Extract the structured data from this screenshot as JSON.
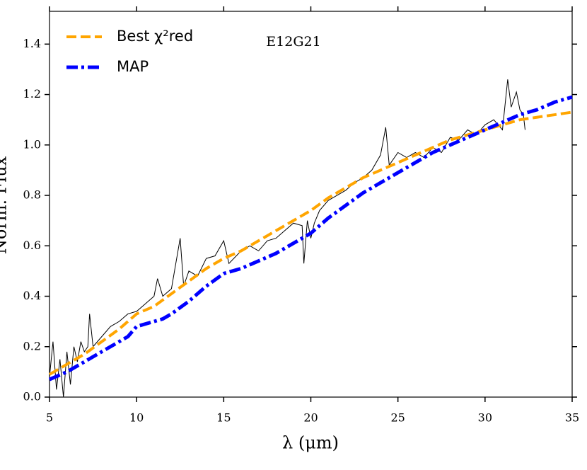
{
  "chart_data": {
    "type": "line",
    "xlabel": "λ (μm)",
    "ylabel": "Norm. Flux",
    "annotation": "E12G21",
    "xlim": [
      5,
      35
    ],
    "xticks": [
      5,
      10,
      15,
      20,
      25,
      30,
      35
    ],
    "ylim": [
      0,
      1.53
    ],
    "yticks": [
      {
        "value": 0,
        "label": "0.0"
      },
      {
        "value": 0.2,
        "label": "0.2"
      },
      {
        "value": 0.4,
        "label": "0.4"
      },
      {
        "value": 0.6,
        "label": "0.6"
      },
      {
        "value": 0.8,
        "label": "0.8"
      },
      {
        "value": 1.0,
        "label": "1.0"
      },
      {
        "value": 1.2,
        "label": "1.2"
      },
      {
        "value": 1.4,
        "label": "1.4"
      }
    ],
    "legend": "upper left",
    "series": [
      {
        "color": "#000000",
        "style": "solid",
        "width": 1,
        "x": [
          5,
          5.2,
          5.4,
          5.6,
          5.8,
          6.0,
          6.2,
          6.4,
          6.6,
          6.8,
          7.0,
          7.2,
          7.3,
          7.5,
          8,
          8.5,
          9,
          9.5,
          10,
          10.5,
          11,
          11.2,
          11.5,
          12,
          12.3,
          12.5,
          12.7,
          13,
          13.5,
          14,
          14.5,
          15,
          15.3,
          16,
          16.5,
          17,
          17.5,
          18,
          18.5,
          19,
          19.5,
          19.6,
          19.8,
          20,
          20.2,
          20.5,
          21,
          21.5,
          22,
          22.5,
          23,
          23.5,
          24,
          24.3,
          24.5,
          25,
          25.5,
          26,
          26.5,
          27,
          27.5,
          28,
          28.5,
          29,
          29.5,
          30,
          30.5,
          31,
          31.3,
          31.5,
          31.8,
          32,
          32.2,
          32.3
        ],
        "values": [
          0.08,
          0.22,
          0.03,
          0.15,
          0.0,
          0.18,
          0.05,
          0.2,
          0.14,
          0.22,
          0.18,
          0.2,
          0.33,
          0.2,
          0.24,
          0.28,
          0.3,
          0.33,
          0.34,
          0.37,
          0.4,
          0.47,
          0.4,
          0.43,
          0.55,
          0.63,
          0.44,
          0.5,
          0.48,
          0.55,
          0.56,
          0.62,
          0.53,
          0.58,
          0.6,
          0.58,
          0.62,
          0.63,
          0.66,
          0.69,
          0.68,
          0.53,
          0.7,
          0.63,
          0.69,
          0.74,
          0.78,
          0.8,
          0.82,
          0.85,
          0.87,
          0.9,
          0.96,
          1.07,
          0.92,
          0.97,
          0.95,
          0.97,
          0.95,
          0.99,
          0.97,
          1.03,
          1.02,
          1.06,
          1.04,
          1.08,
          1.1,
          1.06,
          1.26,
          1.15,
          1.21,
          1.14,
          1.12,
          1.06
        ]
      },
      {
        "name": "Best χ²red",
        "color": "#ffa500",
        "style": "dashed",
        "width": 4,
        "x": [
          5,
          7,
          9,
          10,
          11,
          12,
          13,
          14,
          15,
          16,
          17,
          18,
          19,
          20,
          21,
          22,
          23,
          24,
          25,
          26,
          27,
          28,
          29,
          30,
          31,
          32,
          33,
          34,
          35
        ],
        "values": [
          0.09,
          0.17,
          0.27,
          0.33,
          0.36,
          0.41,
          0.46,
          0.51,
          0.55,
          0.58,
          0.62,
          0.66,
          0.7,
          0.74,
          0.79,
          0.83,
          0.87,
          0.9,
          0.93,
          0.96,
          0.99,
          1.02,
          1.04,
          1.06,
          1.08,
          1.1,
          1.11,
          1.12,
          1.13
        ]
      },
      {
        "name": "MAP",
        "color": "#0000ff",
        "style": "dashdot",
        "width": 5,
        "x": [
          5,
          6,
          7,
          8,
          9,
          9.5,
          10,
          11,
          11.5,
          12,
          13,
          14,
          15,
          16,
          17,
          18,
          19,
          20,
          21,
          22,
          23,
          24,
          25,
          26,
          27,
          28,
          29,
          30,
          31,
          32,
          33,
          34,
          35
        ],
        "values": [
          0.07,
          0.1,
          0.14,
          0.18,
          0.22,
          0.24,
          0.28,
          0.3,
          0.31,
          0.33,
          0.38,
          0.44,
          0.49,
          0.51,
          0.54,
          0.57,
          0.61,
          0.65,
          0.71,
          0.76,
          0.81,
          0.85,
          0.89,
          0.93,
          0.97,
          1.0,
          1.03,
          1.06,
          1.09,
          1.12,
          1.14,
          1.17,
          1.19
        ]
      }
    ]
  }
}
